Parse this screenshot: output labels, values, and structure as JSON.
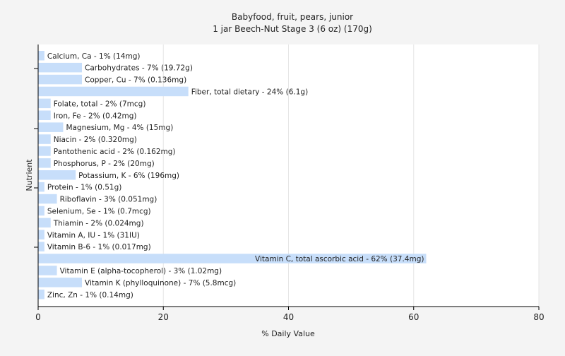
{
  "chart_data": {
    "type": "bar",
    "orientation": "horizontal",
    "title": "Babyfood, fruit, pears, junior",
    "subtitle": "1 jar Beech-Nut Stage 3 (6 oz) (170g)",
    "xlabel": "% Daily Value",
    "ylabel": "Nutrient",
    "xlim": [
      0,
      80
    ],
    "xticks": [
      0,
      20,
      40,
      60,
      80
    ],
    "grid": true,
    "bar_color": "#c7defa",
    "grid_color": "#e6e6e6",
    "categories": [
      "Calcium, Ca",
      "Carbohydrates",
      "Copper, Cu",
      "Fiber, total dietary",
      "Folate, total",
      "Iron, Fe",
      "Magnesium, Mg",
      "Niacin",
      "Pantothenic acid",
      "Phosphorus, P",
      "Potassium, K",
      "Protein",
      "Riboflavin",
      "Selenium, Se",
      "Thiamin",
      "Vitamin A, IU",
      "Vitamin B-6",
      "Vitamin C, total ascorbic acid",
      "Vitamin E (alpha-tocopherol)",
      "Vitamin K (phylloquinone)",
      "Zinc, Zn"
    ],
    "values": [
      1,
      7,
      7,
      24,
      2,
      2,
      4,
      2,
      2,
      2,
      6,
      1,
      3,
      1,
      2,
      1,
      1,
      62,
      3,
      7,
      1
    ],
    "labels": [
      "Calcium, Ca - 1% (14mg)",
      "Carbohydrates - 7% (19.72g)",
      "Copper, Cu - 7% (0.136mg)",
      "Fiber, total dietary - 24% (6.1g)",
      "Folate, total - 2% (7mcg)",
      "Iron, Fe - 2% (0.42mg)",
      "Magnesium, Mg - 4% (15mg)",
      "Niacin - 2% (0.320mg)",
      "Pantothenic acid - 2% (0.162mg)",
      "Phosphorus, P - 2% (20mg)",
      "Potassium, K - 6% (196mg)",
      "Protein - 1% (0.51g)",
      "Riboflavin - 3% (0.051mg)",
      "Selenium, Se - 1% (0.7mcg)",
      "Thiamin - 2% (0.024mg)",
      "Vitamin A, IU - 1% (31IU)",
      "Vitamin B-6 - 1% (0.017mg)",
      "Vitamin C, total ascorbic acid - 62% (37.4mg)",
      "Vitamin E (alpha-tocopherol) - 3% (1.02mg)",
      "Vitamin K (phylloquinone) - 7% (5.8mcg)",
      "Zinc, Zn - 1% (0.14mg)"
    ]
  }
}
